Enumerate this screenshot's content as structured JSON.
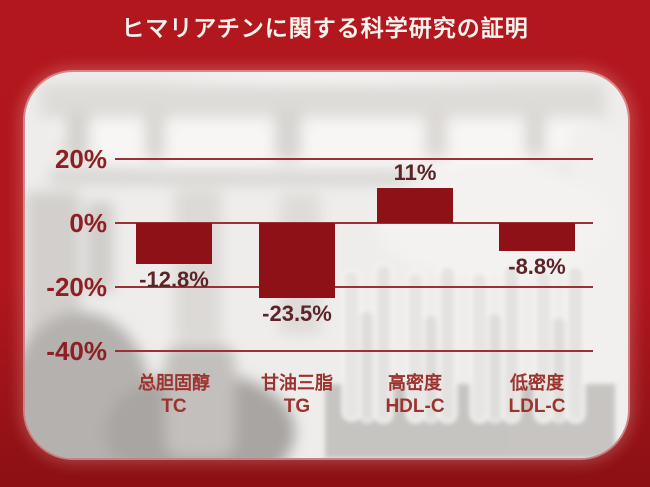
{
  "title": {
    "text": "ヒマリアチンに関する科学研究の証明"
  },
  "colors": {
    "background_top": "#b2171d",
    "background_bottom": "#8c1014",
    "panel": "#eeedeb",
    "bar": "#8d1116",
    "grid_line": "#9c3135",
    "axis_label": "#8e1f24",
    "value_label": "#5d2427",
    "category_label": "#9c332e",
    "title_text": "#f6f3ef"
  },
  "chart_data": {
    "type": "bar",
    "title": "ヒマリアチンに関する科学研究の証明",
    "categories": [
      "总胆固醇 TC",
      "甘油三脂 TG",
      "高密度 HDL-C",
      "低密度 LDL-C"
    ],
    "category_lines": [
      {
        "name": "总胆固醇",
        "abbr": "TC"
      },
      {
        "name": "甘油三脂",
        "abbr": "TG"
      },
      {
        "name": "高密度",
        "abbr": "HDL-C"
      },
      {
        "name": "低密度",
        "abbr": "LDL-C"
      }
    ],
    "values": [
      -12.8,
      -23.5,
      11,
      -8.8
    ],
    "value_labels": [
      "-12.8%",
      "-23.5%",
      "11%",
      "-8.8%"
    ],
    "unit": "%",
    "y_ticks": [
      {
        "label": "20%",
        "value": 20
      },
      {
        "label": "0%",
        "value": 0
      },
      {
        "label": "-20%",
        "value": -20
      },
      {
        "label": "-40%",
        "value": -40
      }
    ],
    "ylim": [
      -45,
      25
    ],
    "grid": true,
    "legend": "none",
    "bar_color": "#8d1116"
  }
}
